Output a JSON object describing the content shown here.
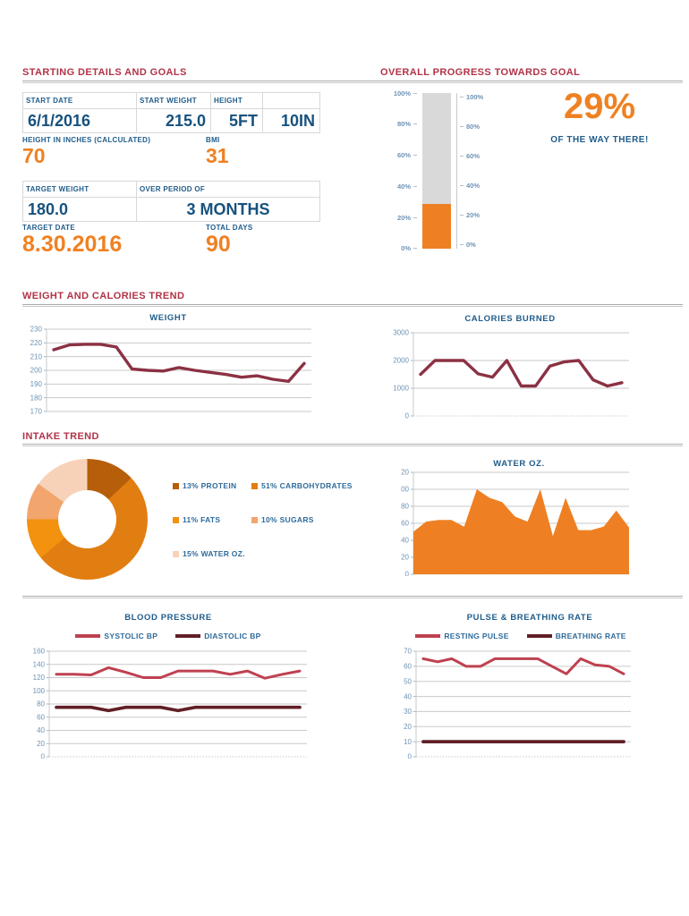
{
  "sections": {
    "starting_details": {
      "title": "STARTING DETAILS AND GOALS",
      "table1": {
        "headers": [
          "START DATE",
          "START WEIGHT",
          "HEIGHT",
          ""
        ],
        "values": [
          "6/1/2016",
          "215.0",
          "5FT",
          "10IN"
        ]
      },
      "height_in_inches": {
        "label": "HEIGHT IN INCHES (CALCULATED)",
        "value": "70"
      },
      "bmi": {
        "label": "BMI",
        "value": "31"
      },
      "table2": {
        "headers": [
          "TARGET WEIGHT",
          "OVER PERIOD OF"
        ],
        "values": [
          "180.0",
          "3 MONTHS"
        ]
      },
      "target_date": {
        "label": "TARGET DATE",
        "value": "8.30.2016"
      },
      "total_days": {
        "label": "TOTAL DAYS",
        "value": "90"
      }
    },
    "overall_progress": {
      "title": "OVERALL PROGRESS TOWARDS GOAL",
      "percent": "29%",
      "caption": "OF THE WAY THERE!"
    },
    "weight_calories": {
      "title": "WEIGHT AND CALORIES TREND"
    },
    "intake": {
      "title": "INTAKE TREND"
    }
  },
  "colors": {
    "header_red": "#B13347",
    "label_blue": "#1F5C8B",
    "value_blue": "#17527E",
    "accent_orange": "#EF8122",
    "tick_blue": "#6E93B5",
    "gridline": "#c9c9c9"
  },
  "chart_data": [
    {
      "id": "progress",
      "type": "progress",
      "title": "OVERALL PROGRESS TOWARDS GOAL",
      "value": 29,
      "ylim": [
        0,
        100
      ],
      "yticks": [
        "100%",
        "80%",
        "60%",
        "40%",
        "20%",
        "0%"
      ],
      "bar_color": "#EE8023",
      "track_color": "#D9D9D9",
      "legend_position": "none"
    },
    {
      "id": "weight",
      "type": "line",
      "title": "WEIGHT",
      "ylim": [
        170,
        230
      ],
      "yticks": [
        230,
        220,
        210,
        200,
        190,
        180,
        170
      ],
      "grid": true,
      "series": [
        {
          "name": "WEIGHT",
          "color": "#8B3144",
          "width": 3.4,
          "values": [
            215,
            218.5,
            219,
            219,
            217,
            201,
            200,
            199.5,
            202,
            200,
            198.5,
            197,
            195,
            196,
            193.5,
            192,
            205
          ]
        }
      ]
    },
    {
      "id": "calories",
      "type": "line",
      "title": "CALORIES BURNED",
      "ylim": [
        0,
        3000
      ],
      "yticks": [
        3000,
        2000,
        1000,
        0
      ],
      "grid": true,
      "series": [
        {
          "name": "CALORIES BURNED",
          "color": "#8B3144",
          "width": 3.4,
          "values": [
            1500,
            2000,
            2000,
            2000,
            1520,
            1400,
            2000,
            1080,
            1080,
            1800,
            1950,
            2000,
            1300,
            1080,
            1200
          ]
        }
      ]
    },
    {
      "id": "intake",
      "type": "donut",
      "title": "INTAKE TREND",
      "slices": [
        {
          "label": "13% PROTEIN",
          "pct": 13,
          "color": "#B65E09"
        },
        {
          "label": "51% CARBOHYDRATES",
          "pct": 51,
          "color": "#E17E11"
        },
        {
          "label": "11% FATS",
          "pct": 11,
          "color": "#F2920E"
        },
        {
          "label": "10% SUGARS",
          "pct": 10,
          "color": "#F2A56D"
        },
        {
          "label": "15% WATER OZ.",
          "pct": 15,
          "color": "#F8D2B8"
        }
      ],
      "legend_position": "right"
    },
    {
      "id": "water",
      "type": "area",
      "title": "WATER OZ.",
      "ylim": [
        0,
        120
      ],
      "yticks": [
        {
          "v": 120,
          "label": "20"
        },
        {
          "v": 100,
          "label": "00"
        },
        {
          "v": 80,
          "label": "80"
        },
        {
          "v": 60,
          "label": "60"
        },
        {
          "v": 40,
          "label": "40"
        },
        {
          "v": 20,
          "label": "20"
        },
        {
          "v": 0,
          "label": "0"
        }
      ],
      "grid": true,
      "series": [
        {
          "name": "WATER OZ.",
          "color": "#EE8023",
          "values": [
            50,
            62,
            64,
            64,
            56,
            100,
            90,
            85,
            68,
            62,
            100,
            45,
            90,
            52,
            52,
            56,
            75,
            55
          ]
        }
      ]
    },
    {
      "id": "bp",
      "type": "line",
      "title": "BLOOD PRESSURE",
      "ylim": [
        0,
        160
      ],
      "yticks": [
        160,
        140,
        120,
        100,
        80,
        60,
        40,
        20,
        0
      ],
      "grid": true,
      "legend_position": "top",
      "legend": [
        {
          "name": "SYSTOLIC BP",
          "color": "#BF4150"
        },
        {
          "name": "DIASTOLIC BP",
          "color": "#611F26"
        }
      ],
      "series": [
        {
          "name": "SYSTOLIC BP",
          "color": "#BF4150",
          "width": 3,
          "values": [
            125,
            125,
            124,
            135,
            128,
            120,
            120,
            130,
            130,
            130,
            125,
            130,
            119,
            125,
            130
          ]
        },
        {
          "name": "DIASTOLIC BP",
          "color": "#611F26",
          "width": 3.6,
          "values": [
            75,
            75,
            75,
            70,
            75,
            75,
            75,
            70,
            75,
            75,
            75,
            75,
            75,
            75,
            75
          ]
        }
      ]
    },
    {
      "id": "pulse",
      "type": "line",
      "title": "PULSE & BREATHING RATE",
      "ylim": [
        0,
        70
      ],
      "yticks": [
        70,
        60,
        50,
        40,
        30,
        20,
        10,
        0
      ],
      "grid": true,
      "legend_position": "top",
      "legend": [
        {
          "name": "RESTING PULSE",
          "color": "#BF4150"
        },
        {
          "name": "BREATHING RATE",
          "color": "#611F26"
        }
      ],
      "series": [
        {
          "name": "RESTING PULSE",
          "color": "#BF4150",
          "width": 3,
          "values": [
            65,
            63,
            65,
            60,
            60,
            65,
            65,
            65,
            65,
            60,
            55,
            65,
            61,
            60,
            55
          ]
        },
        {
          "name": "BREATHING RATE",
          "color": "#611F26",
          "width": 3.8,
          "values": [
            10,
            10,
            10,
            10,
            10,
            10,
            10,
            10,
            10,
            10,
            10,
            10,
            10,
            10,
            10
          ]
        }
      ]
    }
  ]
}
